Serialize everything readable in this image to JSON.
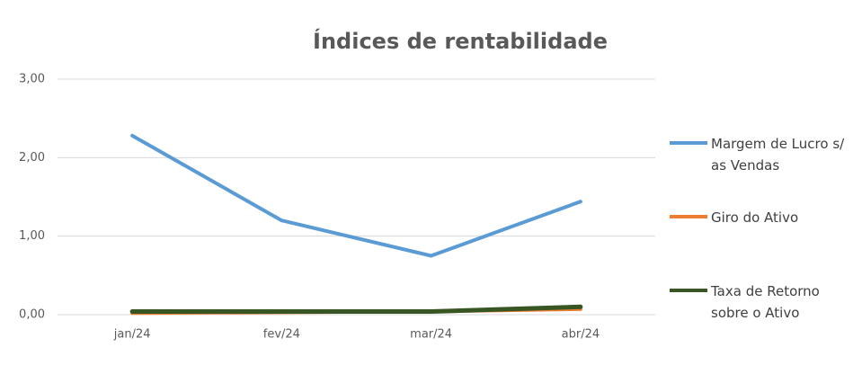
{
  "chart_data": {
    "type": "line",
    "title": "Índices de rentabilidade",
    "categories": [
      "jan/24",
      "fev/24",
      "mar/24",
      "abr/24"
    ],
    "series": [
      {
        "name": "Margem de Lucro s/ as Vendas",
        "color": "#5b9bd5",
        "values": [
          2.28,
          1.2,
          0.75,
          1.44
        ]
      },
      {
        "name": "Giro do Ativo",
        "color": "#ed7d31",
        "values": [
          0.02,
          0.03,
          0.04,
          0.07
        ]
      },
      {
        "name": "Taxa de Retorno sobre o Ativo",
        "color": "#375623",
        "values": [
          0.04,
          0.04,
          0.04,
          0.1
        ]
      }
    ],
    "ylim": [
      0,
      3
    ],
    "yticks": [
      {
        "value": 0,
        "label": "0,00"
      },
      {
        "value": 1,
        "label": "1,00"
      },
      {
        "value": 2,
        "label": "2,00"
      },
      {
        "value": 3,
        "label": "3,00"
      }
    ],
    "grid": true,
    "legend": "right"
  }
}
